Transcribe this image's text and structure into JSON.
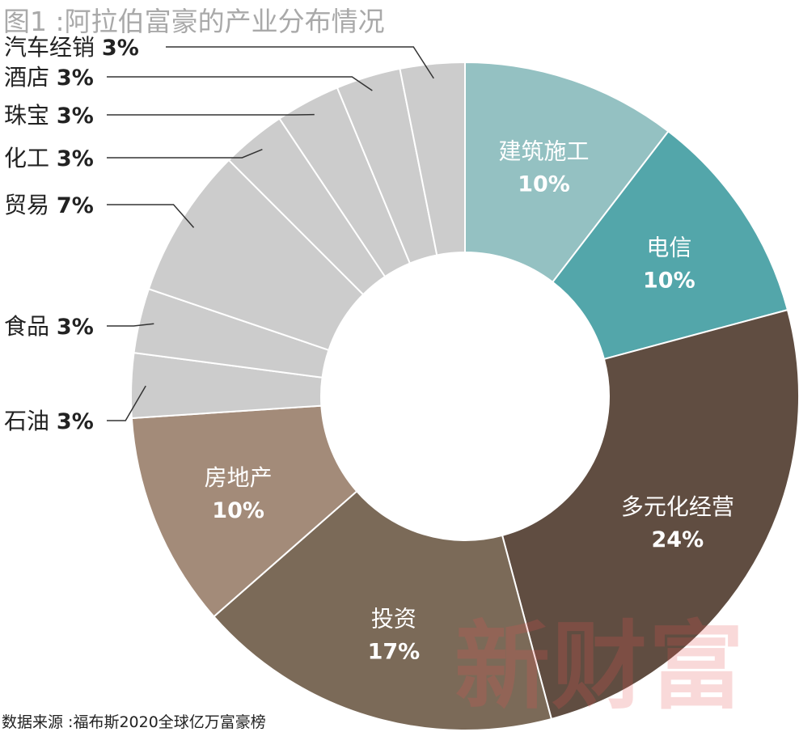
{
  "title": "图1 :阿拉伯富豪的产业分布情况",
  "source": "数据来源 :福布斯2020全球亿万富豪榜",
  "watermark": "新财富",
  "chart_data": {
    "type": "pie",
    "donut": true,
    "slices": [
      {
        "label": "建筑施工",
        "value": 10,
        "display": "10%",
        "color": "#94c1c2",
        "label_position": "inside"
      },
      {
        "label": "电信",
        "value": 10,
        "display": "10%",
        "color": "#53a6aa",
        "label_position": "inside"
      },
      {
        "label": "多元化经营",
        "value": 24,
        "display": "24%",
        "color": "#604d41",
        "label_position": "inside"
      },
      {
        "label": "投资",
        "value": 17,
        "display": "17%",
        "color": "#7b6a58",
        "label_position": "inside"
      },
      {
        "label": "房地产",
        "value": 10,
        "display": "10%",
        "color": "#a38b79",
        "label_position": "inside"
      },
      {
        "label": "石油",
        "value": 3,
        "display": "3%",
        "color": "#cccccc",
        "label_position": "outside"
      },
      {
        "label": "食品",
        "value": 3,
        "display": "3%",
        "color": "#cccccc",
        "label_position": "outside"
      },
      {
        "label": "贸易",
        "value": 7,
        "display": "7%",
        "color": "#cccccc",
        "label_position": "outside"
      },
      {
        "label": "化工",
        "value": 3,
        "display": "3%",
        "color": "#cccccc",
        "label_position": "outside"
      },
      {
        "label": "珠宝",
        "value": 3,
        "display": "3%",
        "color": "#cccccc",
        "label_position": "outside"
      },
      {
        "label": "酒店",
        "value": 3,
        "display": "3%",
        "color": "#cccccc",
        "label_position": "outside"
      },
      {
        "label": "汽车经销",
        "value": 3,
        "display": "3%",
        "color": "#cccccc",
        "label_position": "outside"
      }
    ]
  }
}
